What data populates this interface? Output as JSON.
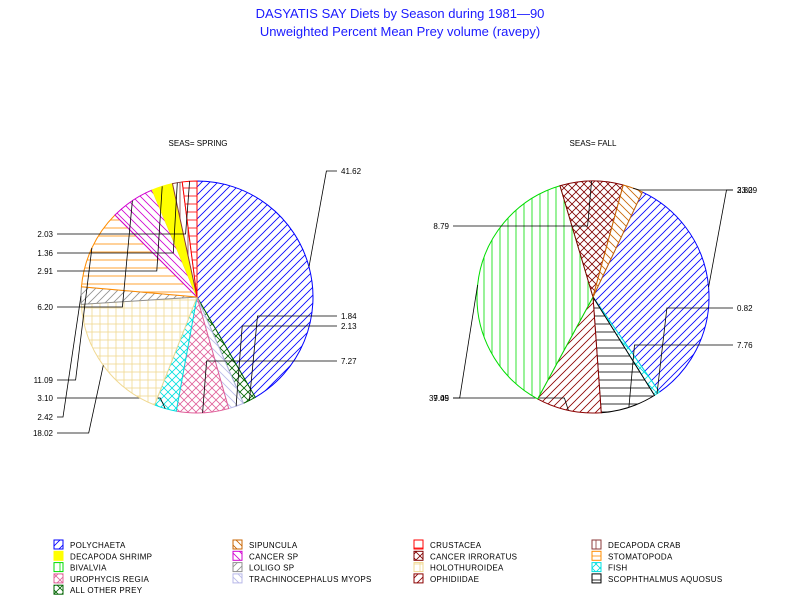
{
  "header": {
    "title": "DASYATIS SAY Diets by Season during 1981—90",
    "subtitle": "Unweighted Percent Mean Prey volume (ravepy)"
  },
  "chart_data": [
    {
      "type": "pie",
      "title": "SEAS= SPRING",
      "slices": [
        {
          "category": "POLYCHAETA",
          "value": 41.62
        },
        {
          "category": "ALL OTHER PREY",
          "value": 1.84
        },
        {
          "category": "TRACHINOCEPHALUS MYOPS",
          "value": 2.13
        },
        {
          "category": "UROPHYCIS REGIA",
          "value": 7.27
        },
        {
          "category": "FISH",
          "value": 3.1
        },
        {
          "category": "HOLOTHUROIDEA",
          "value": 18.02
        },
        {
          "category": "LOLIGO SP",
          "value": 2.42
        },
        {
          "category": "STOMATOPODA",
          "value": 11.09
        },
        {
          "category": "CANCER SP",
          "value": 6.2
        },
        {
          "category": "DECAPODA SHRIMP",
          "value": 2.91
        },
        {
          "category": "DECAPODA CRAB",
          "value": 1.36
        },
        {
          "category": "CRUSTACEA",
          "value": 2.03
        }
      ]
    },
    {
      "type": "pie",
      "title": "SEAS= FALL",
      "slices": [
        {
          "category": "POLYCHAETA",
          "value": 33.29
        },
        {
          "category": "FISH",
          "value": 0.82
        },
        {
          "category": "SCOPHTHALMUS AQUOSUS",
          "value": 7.76
        },
        {
          "category": "OPHIDIIDAE",
          "value": 9.05
        },
        {
          "category": "BIVALVIA",
          "value": 37.49
        },
        {
          "category": "CANCER IRRORATUS",
          "value": 8.79
        },
        {
          "category": "SIPUNCULA",
          "value": 2.8
        }
      ]
    }
  ],
  "legend": [
    {
      "label": "POLYCHAETA",
      "color": "#0000ff",
      "pattern": "diag-right"
    },
    {
      "label": "SIPUNCULA",
      "color": "#c86400",
      "pattern": "diag-left"
    },
    {
      "label": "CRUSTACEA",
      "color": "#ff0000",
      "pattern": "horizontal"
    },
    {
      "label": "DECAPODA CRAB",
      "color": "#8b3a3a",
      "pattern": "vertical"
    },
    {
      "label": "DECAPODA SHRIMP",
      "color": "#ffff00",
      "pattern": "solid"
    },
    {
      "label": "CANCER SP",
      "color": "#d000d0",
      "pattern": "diag-left"
    },
    {
      "label": "CANCER IRRORATUS",
      "color": "#800000",
      "pattern": "crosshatch-diag"
    },
    {
      "label": "STOMATOPODA",
      "color": "#ff8c00",
      "pattern": "horizontal"
    },
    {
      "label": "BIVALVIA",
      "color": "#00dd00",
      "pattern": "vertical"
    },
    {
      "label": "LOLIGO SP",
      "color": "#909090",
      "pattern": "diag-right"
    },
    {
      "label": "HOLOTHUROIDEA",
      "color": "#f0d890",
      "pattern": "grid"
    },
    {
      "label": "FISH",
      "color": "#00e0e0",
      "pattern": "crosshatch-diag"
    },
    {
      "label": "UROPHYCIS REGIA",
      "color": "#e0609a",
      "pattern": "crosshatch-diag"
    },
    {
      "label": "TRACHINOCEPHALUS MYOPS",
      "color": "#b8b8e8",
      "pattern": "diag-left"
    },
    {
      "label": "OPHIDIIDAE",
      "color": "#8b0000",
      "pattern": "diag-right"
    },
    {
      "label": "SCOPHTHALMUS AQUOSUS",
      "color": "#000000",
      "pattern": "horizontal"
    },
    {
      "label": "ALL OTHER PREY",
      "color": "#006400",
      "pattern": "crosshatch-diag"
    }
  ]
}
